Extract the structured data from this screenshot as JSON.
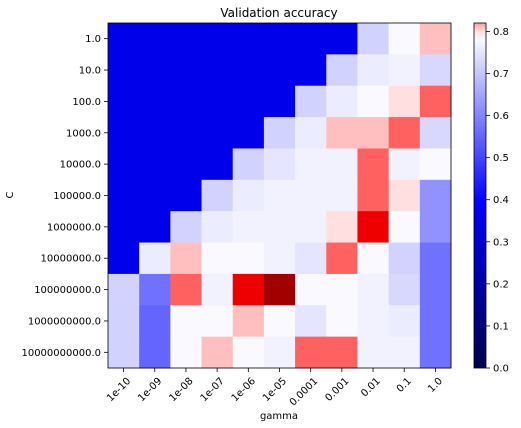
{
  "chart_data": {
    "type": "heatmap",
    "title": "Validation accuracy",
    "xlabel": "gamma",
    "ylabel": "C",
    "x_categories": [
      "1e-10",
      "1e-09",
      "1e-08",
      "1e-07",
      "1e-06",
      "1e-05",
      "0.0001",
      "0.001",
      "0.01",
      "0.1",
      "1.0"
    ],
    "y_categories": [
      "1.0",
      "10.0",
      "100.0",
      "1000.0",
      "10000.0",
      "100000.0",
      "1000000.0",
      "10000000.0",
      "100000000.0",
      "1000000000.0",
      "10000000000.0"
    ],
    "values": [
      [
        0.35,
        0.35,
        0.35,
        0.35,
        0.35,
        0.35,
        0.35,
        0.35,
        0.72,
        0.78,
        0.81
      ],
      [
        0.35,
        0.35,
        0.35,
        0.35,
        0.35,
        0.35,
        0.35,
        0.72,
        0.76,
        0.77,
        0.73
      ],
      [
        0.35,
        0.35,
        0.35,
        0.35,
        0.35,
        0.35,
        0.72,
        0.76,
        0.78,
        0.8,
        0.84
      ],
      [
        0.35,
        0.35,
        0.35,
        0.35,
        0.35,
        0.72,
        0.76,
        0.81,
        0.81,
        0.84,
        0.73
      ],
      [
        0.35,
        0.35,
        0.35,
        0.35,
        0.72,
        0.75,
        0.77,
        0.77,
        0.84,
        0.77,
        0.78
      ],
      [
        0.35,
        0.35,
        0.35,
        0.72,
        0.76,
        0.77,
        0.77,
        0.77,
        0.84,
        0.8,
        0.62
      ],
      [
        0.35,
        0.35,
        0.72,
        0.76,
        0.77,
        0.77,
        0.77,
        0.8,
        0.88,
        0.78,
        0.62
      ],
      [
        0.35,
        0.76,
        0.81,
        0.78,
        0.78,
        0.77,
        0.75,
        0.84,
        0.78,
        0.72,
        0.57
      ],
      [
        0.72,
        0.57,
        0.84,
        0.77,
        0.88,
        0.93,
        0.78,
        0.78,
        0.77,
        0.73,
        0.57
      ],
      [
        0.72,
        0.55,
        0.78,
        0.78,
        0.81,
        0.78,
        0.75,
        0.78,
        0.77,
        0.76,
        0.57
      ],
      [
        0.72,
        0.55,
        0.78,
        0.81,
        0.78,
        0.77,
        0.84,
        0.84,
        0.77,
        0.77,
        0.57
      ]
    ],
    "vmin": 0.0,
    "vmax": 0.82,
    "colormap": "seismic",
    "colorbar_ticks": [
      "0.0",
      "0.1",
      "0.2",
      "0.3",
      "0.4",
      "0.5",
      "0.6",
      "0.7",
      "0.8"
    ],
    "colorbar_tick_values": [
      0.0,
      0.1,
      0.2,
      0.3,
      0.4,
      0.5,
      0.6,
      0.7,
      0.8
    ]
  }
}
